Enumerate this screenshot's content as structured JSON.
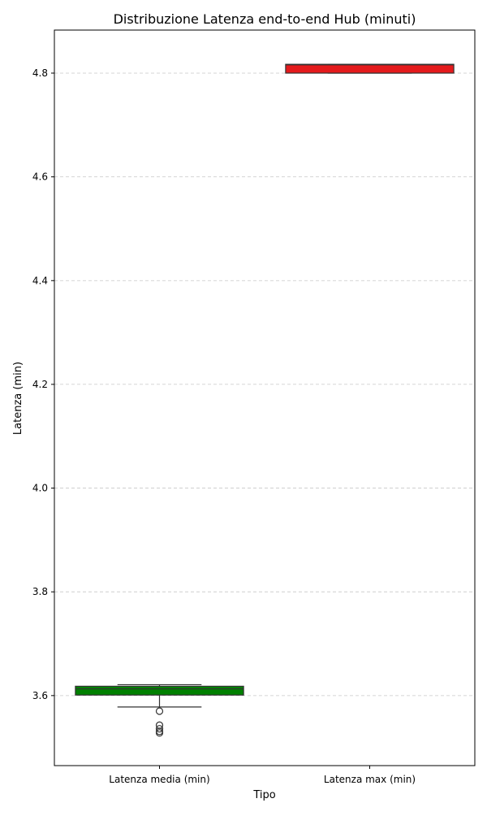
{
  "chart_data": {
    "type": "box",
    "title": "Distribuzione Latenza end-to-end Hub (minuti)",
    "xlabel": "Tipo",
    "ylabel": "Latenza (min)",
    "categories": [
      "Latenza media (min)",
      "Latenza max (min)"
    ],
    "ylim": [
      3.465,
      4.883
    ],
    "yticks": [
      3.6,
      3.8,
      4.0,
      4.2,
      4.4,
      4.6,
      4.8
    ],
    "ytick_labels": [
      "3.6",
      "3.8",
      "4.0",
      "4.2",
      "4.4",
      "4.6",
      "4.8"
    ],
    "grid": "y-dashed",
    "boxes": [
      {
        "category": "Latenza media (min)",
        "color": "#008000",
        "whisker_low": 3.578,
        "q1": 3.601,
        "median": 3.613,
        "q3": 3.618,
        "whisker_high": 3.621,
        "outliers": [
          3.57,
          3.543,
          3.536,
          3.531,
          3.528
        ]
      },
      {
        "category": "Latenza max (min)",
        "color": "#e41a1c",
        "whisker_low": 4.8,
        "q1": 4.8,
        "median": 4.816,
        "q3": 4.817,
        "whisker_high": 4.817,
        "outliers": []
      }
    ]
  }
}
